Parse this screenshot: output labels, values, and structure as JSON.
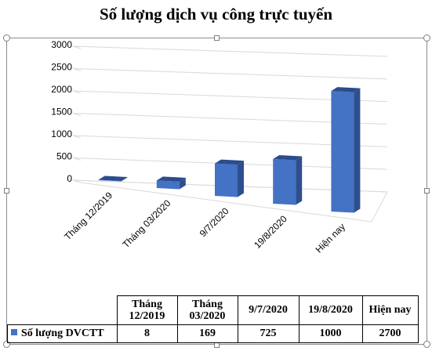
{
  "chart_data": {
    "type": "bar",
    "title": "Số lượng dịch vụ công trực tuyến",
    "categories": [
      "Tháng 12/2019",
      "Tháng 03/2020",
      "9/7/2020",
      "19/8/2020",
      "Hiện nay"
    ],
    "series": [
      {
        "name": "Số lượng DVCTT",
        "values": [
          8,
          169,
          725,
          1000,
          2700
        ]
      }
    ],
    "y_ticks": [
      "0",
      "500",
      "1000",
      "1500",
      "2000",
      "2500",
      "3000"
    ],
    "ylim": [
      0,
      3000
    ],
    "grid": true,
    "three_d": true,
    "bar_color": "#4472c4",
    "xlabel": "",
    "ylabel": ""
  },
  "table": {
    "headers": [
      "Tháng\n12/2019",
      "Tháng\n03/2020",
      "9/7/2020",
      "19/8/2020",
      "Hiện nay"
    ],
    "row_label": "Số lượng DVCTT",
    "values": [
      "8",
      "169",
      "725",
      "1000",
      "2700"
    ]
  }
}
